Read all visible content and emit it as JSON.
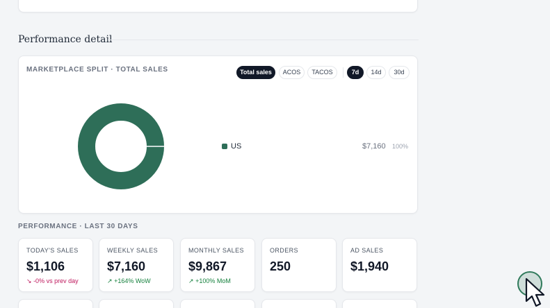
{
  "section": {
    "title": "Performance detail"
  },
  "split": {
    "title": "MARKETPLACE SPLIT · TOTAL SALES",
    "metric_tabs": [
      {
        "label": "Total sales",
        "active": true
      },
      {
        "label": "ACOS",
        "active": false
      },
      {
        "label": "TACOS",
        "active": false
      }
    ],
    "range_tabs": [
      {
        "label": "7d",
        "active": true
      },
      {
        "label": "14d",
        "active": false
      },
      {
        "label": "30d",
        "active": false
      }
    ],
    "legend": [
      {
        "label": "US",
        "value": "$7,160",
        "pct": "100%",
        "color": "#2e6e58"
      }
    ]
  },
  "chart_data": {
    "type": "pie",
    "categories": [
      "US"
    ],
    "values": [
      7160
    ],
    "title": "MARKETPLACE SPLIT · TOTAL SALES"
  },
  "performance": {
    "title": "PERFORMANCE · LAST 30 DAYS",
    "cards": [
      {
        "label": "TODAY'S SALES",
        "value": "$1,106",
        "delta": "-0% vs prev day",
        "trend": "down"
      },
      {
        "label": "WEEKLY SALES",
        "value": "$7,160",
        "delta": "+164% WoW",
        "trend": "up"
      },
      {
        "label": "MONTHLY SALES",
        "value": "$9,867",
        "delta": "+100% MoM",
        "trend": "up"
      },
      {
        "label": "ORDERS",
        "value": "250",
        "delta": "",
        "trend": ""
      },
      {
        "label": "AD SALES",
        "value": "$1,940",
        "delta": "",
        "trend": ""
      }
    ]
  },
  "colors": {
    "accent": "#2e6e58",
    "dark": "#111827",
    "down": "#be185d",
    "up": "#15803d"
  },
  "icons": {
    "down": "arrow-down-right-icon",
    "up": "arrow-up-right-icon"
  }
}
